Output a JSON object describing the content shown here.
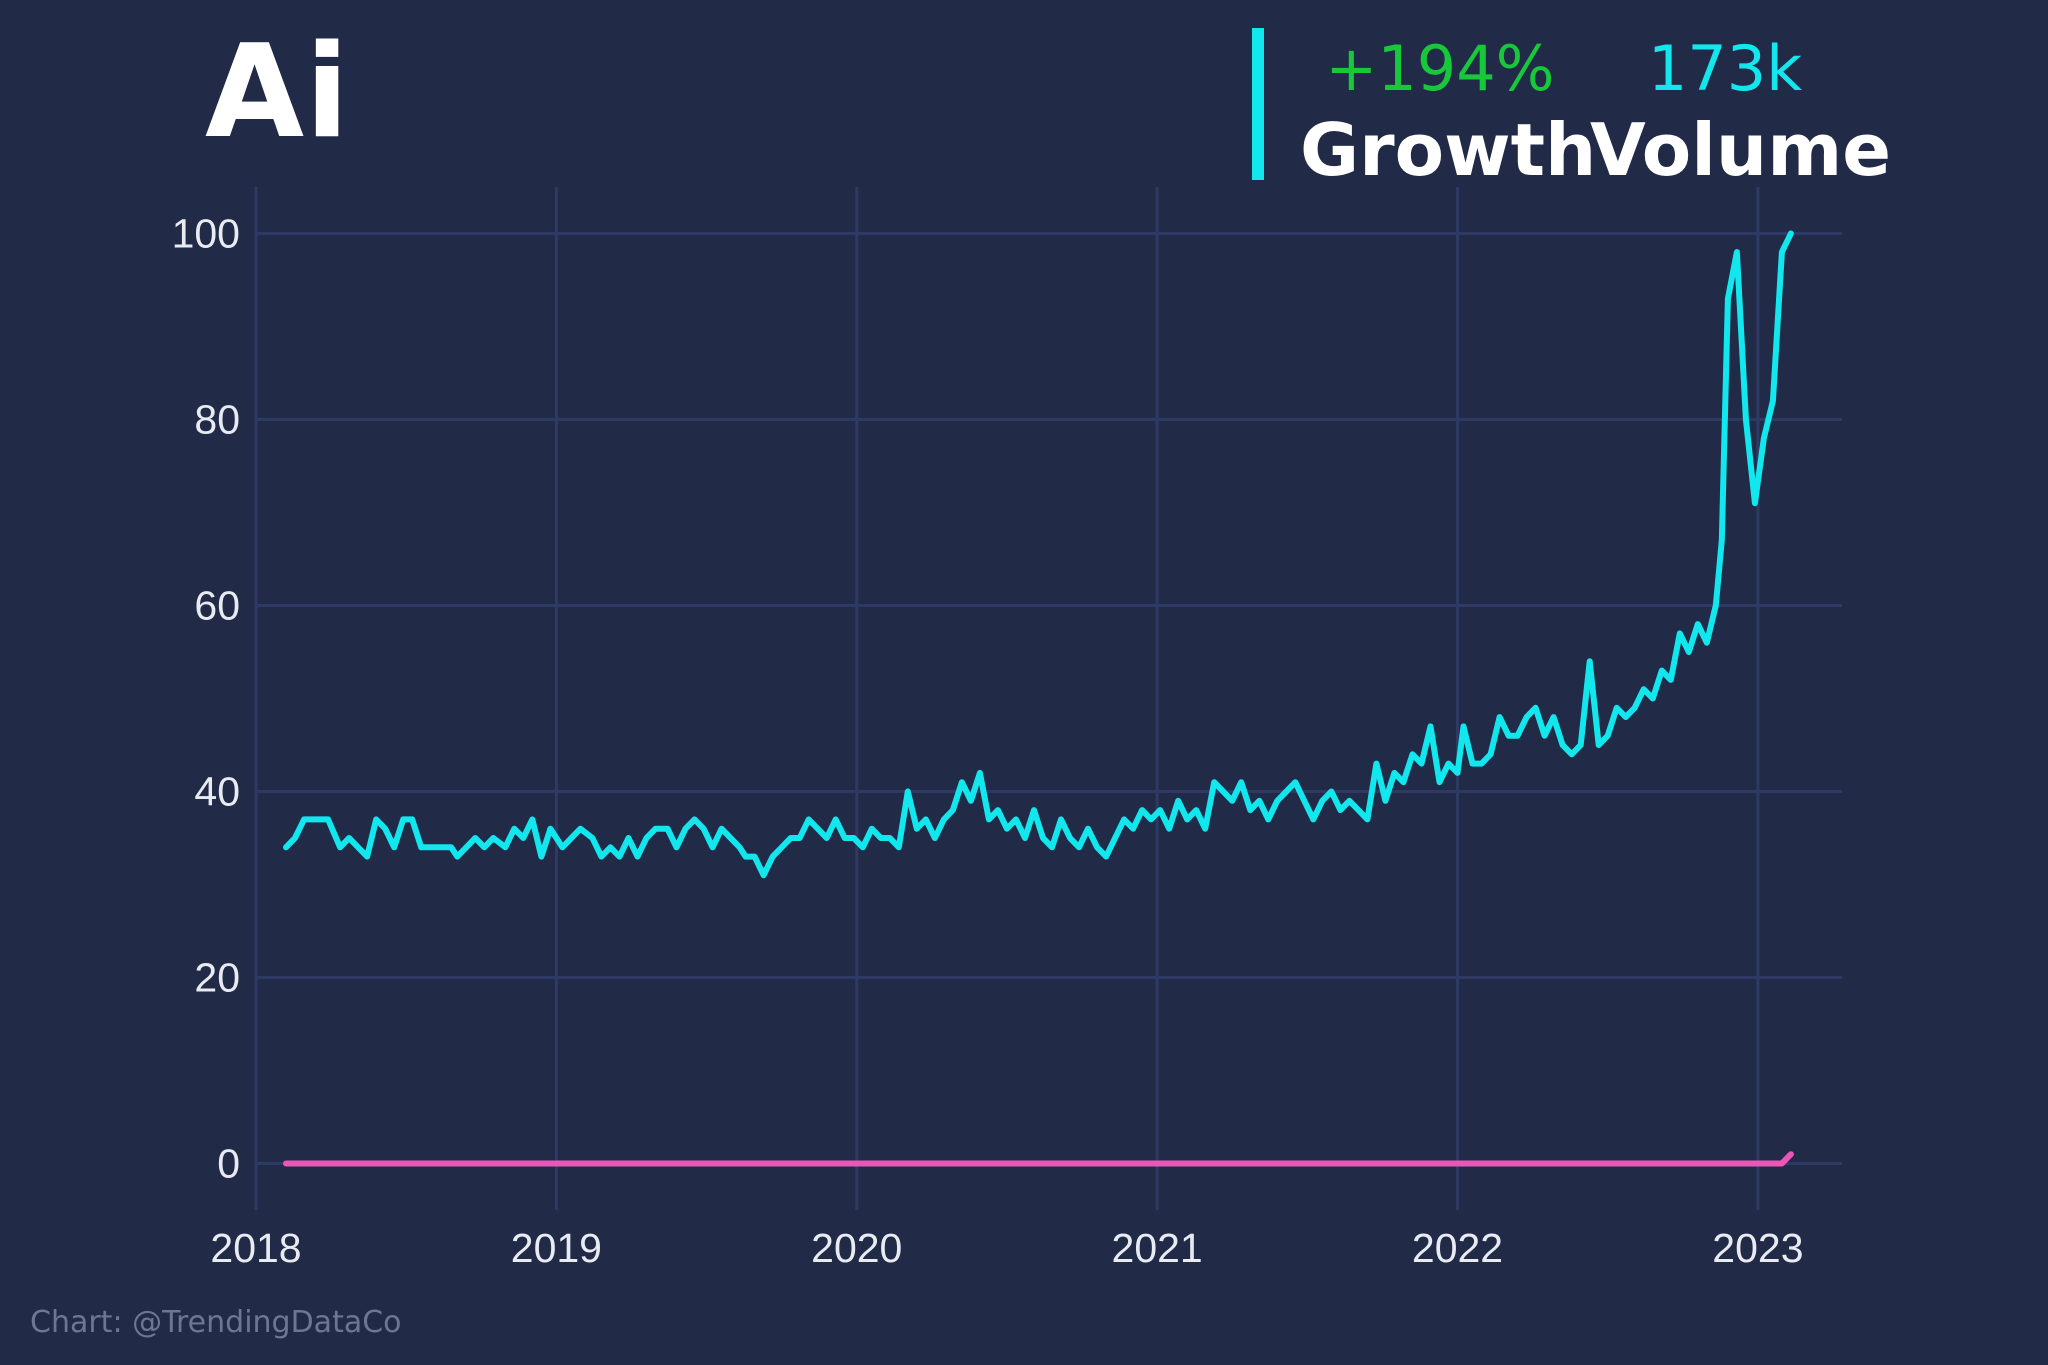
{
  "title": "Ai",
  "stats": {
    "growth_value": "+194%",
    "growth_label": "Growth",
    "volume_value": "173k",
    "volume_label": "Volume"
  },
  "footer": "Chart: @TrendingDataCo",
  "colors": {
    "background": "#212a47",
    "grid": "#2e3a63",
    "series_main": "#12e7ee",
    "series_baseline": "#ee55b8",
    "growth": "#17c93a",
    "text": "#ffffff"
  },
  "chart_data": {
    "type": "line",
    "xlim": [
      2018.0,
      2023.28
    ],
    "ylim": [
      -5,
      105
    ],
    "x_ticks": [
      2018,
      2019,
      2020,
      2021,
      2022,
      2023
    ],
    "x_tick_labels": [
      "2018",
      "2019",
      "2020",
      "2021",
      "2022",
      "2023"
    ],
    "y_ticks": [
      0,
      20,
      40,
      60,
      80,
      100
    ],
    "y_tick_labels": [
      "0",
      "20",
      "40",
      "60",
      "80",
      "100"
    ],
    "grid": true,
    "series": [
      {
        "color": "#12e7ee",
        "points": [
          [
            2018.1,
            34
          ],
          [
            2018.13,
            35
          ],
          [
            2018.16,
            37
          ],
          [
            2018.2,
            37
          ],
          [
            2018.24,
            37
          ],
          [
            2018.28,
            34
          ],
          [
            2018.31,
            35
          ],
          [
            2018.34,
            34
          ],
          [
            2018.37,
            33
          ],
          [
            2018.4,
            37
          ],
          [
            2018.43,
            36
          ],
          [
            2018.46,
            34
          ],
          [
            2018.49,
            37
          ],
          [
            2018.52,
            37
          ],
          [
            2018.55,
            34
          ],
          [
            2018.6,
            34
          ],
          [
            2018.65,
            34
          ],
          [
            2018.67,
            33
          ],
          [
            2018.7,
            34
          ],
          [
            2018.73,
            35
          ],
          [
            2018.76,
            34
          ],
          [
            2018.79,
            35
          ],
          [
            2018.83,
            34
          ],
          [
            2018.86,
            36
          ],
          [
            2018.89,
            35
          ],
          [
            2018.92,
            37
          ],
          [
            2018.95,
            33
          ],
          [
            2018.98,
            36
          ],
          [
            2019.02,
            34
          ],
          [
            2019.05,
            35
          ],
          [
            2019.08,
            36
          ],
          [
            2019.12,
            35
          ],
          [
            2019.15,
            33
          ],
          [
            2019.18,
            34
          ],
          [
            2019.21,
            33
          ],
          [
            2019.24,
            35
          ],
          [
            2019.27,
            33
          ],
          [
            2019.3,
            35
          ],
          [
            2019.33,
            36
          ],
          [
            2019.37,
            36
          ],
          [
            2019.4,
            34
          ],
          [
            2019.43,
            36
          ],
          [
            2019.46,
            37
          ],
          [
            2019.49,
            36
          ],
          [
            2019.52,
            34
          ],
          [
            2019.55,
            36
          ],
          [
            2019.58,
            35
          ],
          [
            2019.61,
            34
          ],
          [
            2019.63,
            33
          ],
          [
            2019.66,
            33
          ],
          [
            2019.69,
            31
          ],
          [
            2019.72,
            33
          ],
          [
            2019.75,
            34
          ],
          [
            2019.78,
            35
          ],
          [
            2019.81,
            35
          ],
          [
            2019.84,
            37
          ],
          [
            2019.87,
            36
          ],
          [
            2019.9,
            35
          ],
          [
            2019.93,
            37
          ],
          [
            2019.96,
            35
          ],
          [
            2019.99,
            35
          ],
          [
            2020.02,
            34
          ],
          [
            2020.05,
            36
          ],
          [
            2020.08,
            35
          ],
          [
            2020.11,
            35
          ],
          [
            2020.14,
            34
          ],
          [
            2020.17,
            40
          ],
          [
            2020.2,
            36
          ],
          [
            2020.23,
            37
          ],
          [
            2020.26,
            35
          ],
          [
            2020.29,
            37
          ],
          [
            2020.32,
            38
          ],
          [
            2020.35,
            41
          ],
          [
            2020.38,
            39
          ],
          [
            2020.41,
            42
          ],
          [
            2020.44,
            37
          ],
          [
            2020.47,
            38
          ],
          [
            2020.5,
            36
          ],
          [
            2020.53,
            37
          ],
          [
            2020.56,
            35
          ],
          [
            2020.59,
            38
          ],
          [
            2020.62,
            35
          ],
          [
            2020.65,
            34
          ],
          [
            2020.68,
            37
          ],
          [
            2020.71,
            35
          ],
          [
            2020.74,
            34
          ],
          [
            2020.77,
            36
          ],
          [
            2020.8,
            34
          ],
          [
            2020.83,
            33
          ],
          [
            2020.86,
            35
          ],
          [
            2020.89,
            37
          ],
          [
            2020.92,
            36
          ],
          [
            2020.95,
            38
          ],
          [
            2020.98,
            37
          ],
          [
            2021.01,
            38
          ],
          [
            2021.04,
            36
          ],
          [
            2021.07,
            39
          ],
          [
            2021.1,
            37
          ],
          [
            2021.13,
            38
          ],
          [
            2021.16,
            36
          ],
          [
            2021.19,
            41
          ],
          [
            2021.22,
            40
          ],
          [
            2021.25,
            39
          ],
          [
            2021.28,
            41
          ],
          [
            2021.31,
            38
          ],
          [
            2021.34,
            39
          ],
          [
            2021.37,
            37
          ],
          [
            2021.4,
            39
          ],
          [
            2021.43,
            40
          ],
          [
            2021.46,
            41
          ],
          [
            2021.49,
            39
          ],
          [
            2021.52,
            37
          ],
          [
            2021.55,
            39
          ],
          [
            2021.58,
            40
          ],
          [
            2021.61,
            38
          ],
          [
            2021.64,
            39
          ],
          [
            2021.67,
            38
          ],
          [
            2021.7,
            37
          ],
          [
            2021.73,
            43
          ],
          [
            2021.76,
            39
          ],
          [
            2021.79,
            42
          ],
          [
            2021.82,
            41
          ],
          [
            2021.85,
            44
          ],
          [
            2021.88,
            43
          ],
          [
            2021.91,
            47
          ],
          [
            2021.94,
            41
          ],
          [
            2021.97,
            43
          ],
          [
            2022.0,
            42
          ],
          [
            2022.02,
            47
          ],
          [
            2022.05,
            43
          ],
          [
            2022.08,
            43
          ],
          [
            2022.11,
            44
          ],
          [
            2022.14,
            48
          ],
          [
            2022.17,
            46
          ],
          [
            2022.2,
            46
          ],
          [
            2022.23,
            48
          ],
          [
            2022.26,
            49
          ],
          [
            2022.29,
            46
          ],
          [
            2022.32,
            48
          ],
          [
            2022.35,
            45
          ],
          [
            2022.38,
            44
          ],
          [
            2022.41,
            45
          ],
          [
            2022.44,
            54
          ],
          [
            2022.47,
            45
          ],
          [
            2022.5,
            46
          ],
          [
            2022.53,
            49
          ],
          [
            2022.56,
            48
          ],
          [
            2022.59,
            49
          ],
          [
            2022.62,
            51
          ],
          [
            2022.65,
            50
          ],
          [
            2022.68,
            53
          ],
          [
            2022.71,
            52
          ],
          [
            2022.74,
            57
          ],
          [
            2022.77,
            55
          ],
          [
            2022.8,
            58
          ],
          [
            2022.83,
            56
          ],
          [
            2022.86,
            60
          ],
          [
            2022.88,
            67
          ],
          [
            2022.9,
            93
          ],
          [
            2022.93,
            98
          ],
          [
            2022.96,
            80
          ],
          [
            2022.99,
            71
          ],
          [
            2023.02,
            78
          ],
          [
            2023.05,
            82
          ],
          [
            2023.08,
            98
          ],
          [
            2023.11,
            100
          ]
        ]
      },
      {
        "color": "#ee55b8",
        "points": [
          [
            2018.1,
            0
          ],
          [
            2023.08,
            0
          ],
          [
            2023.11,
            1
          ]
        ]
      }
    ]
  }
}
